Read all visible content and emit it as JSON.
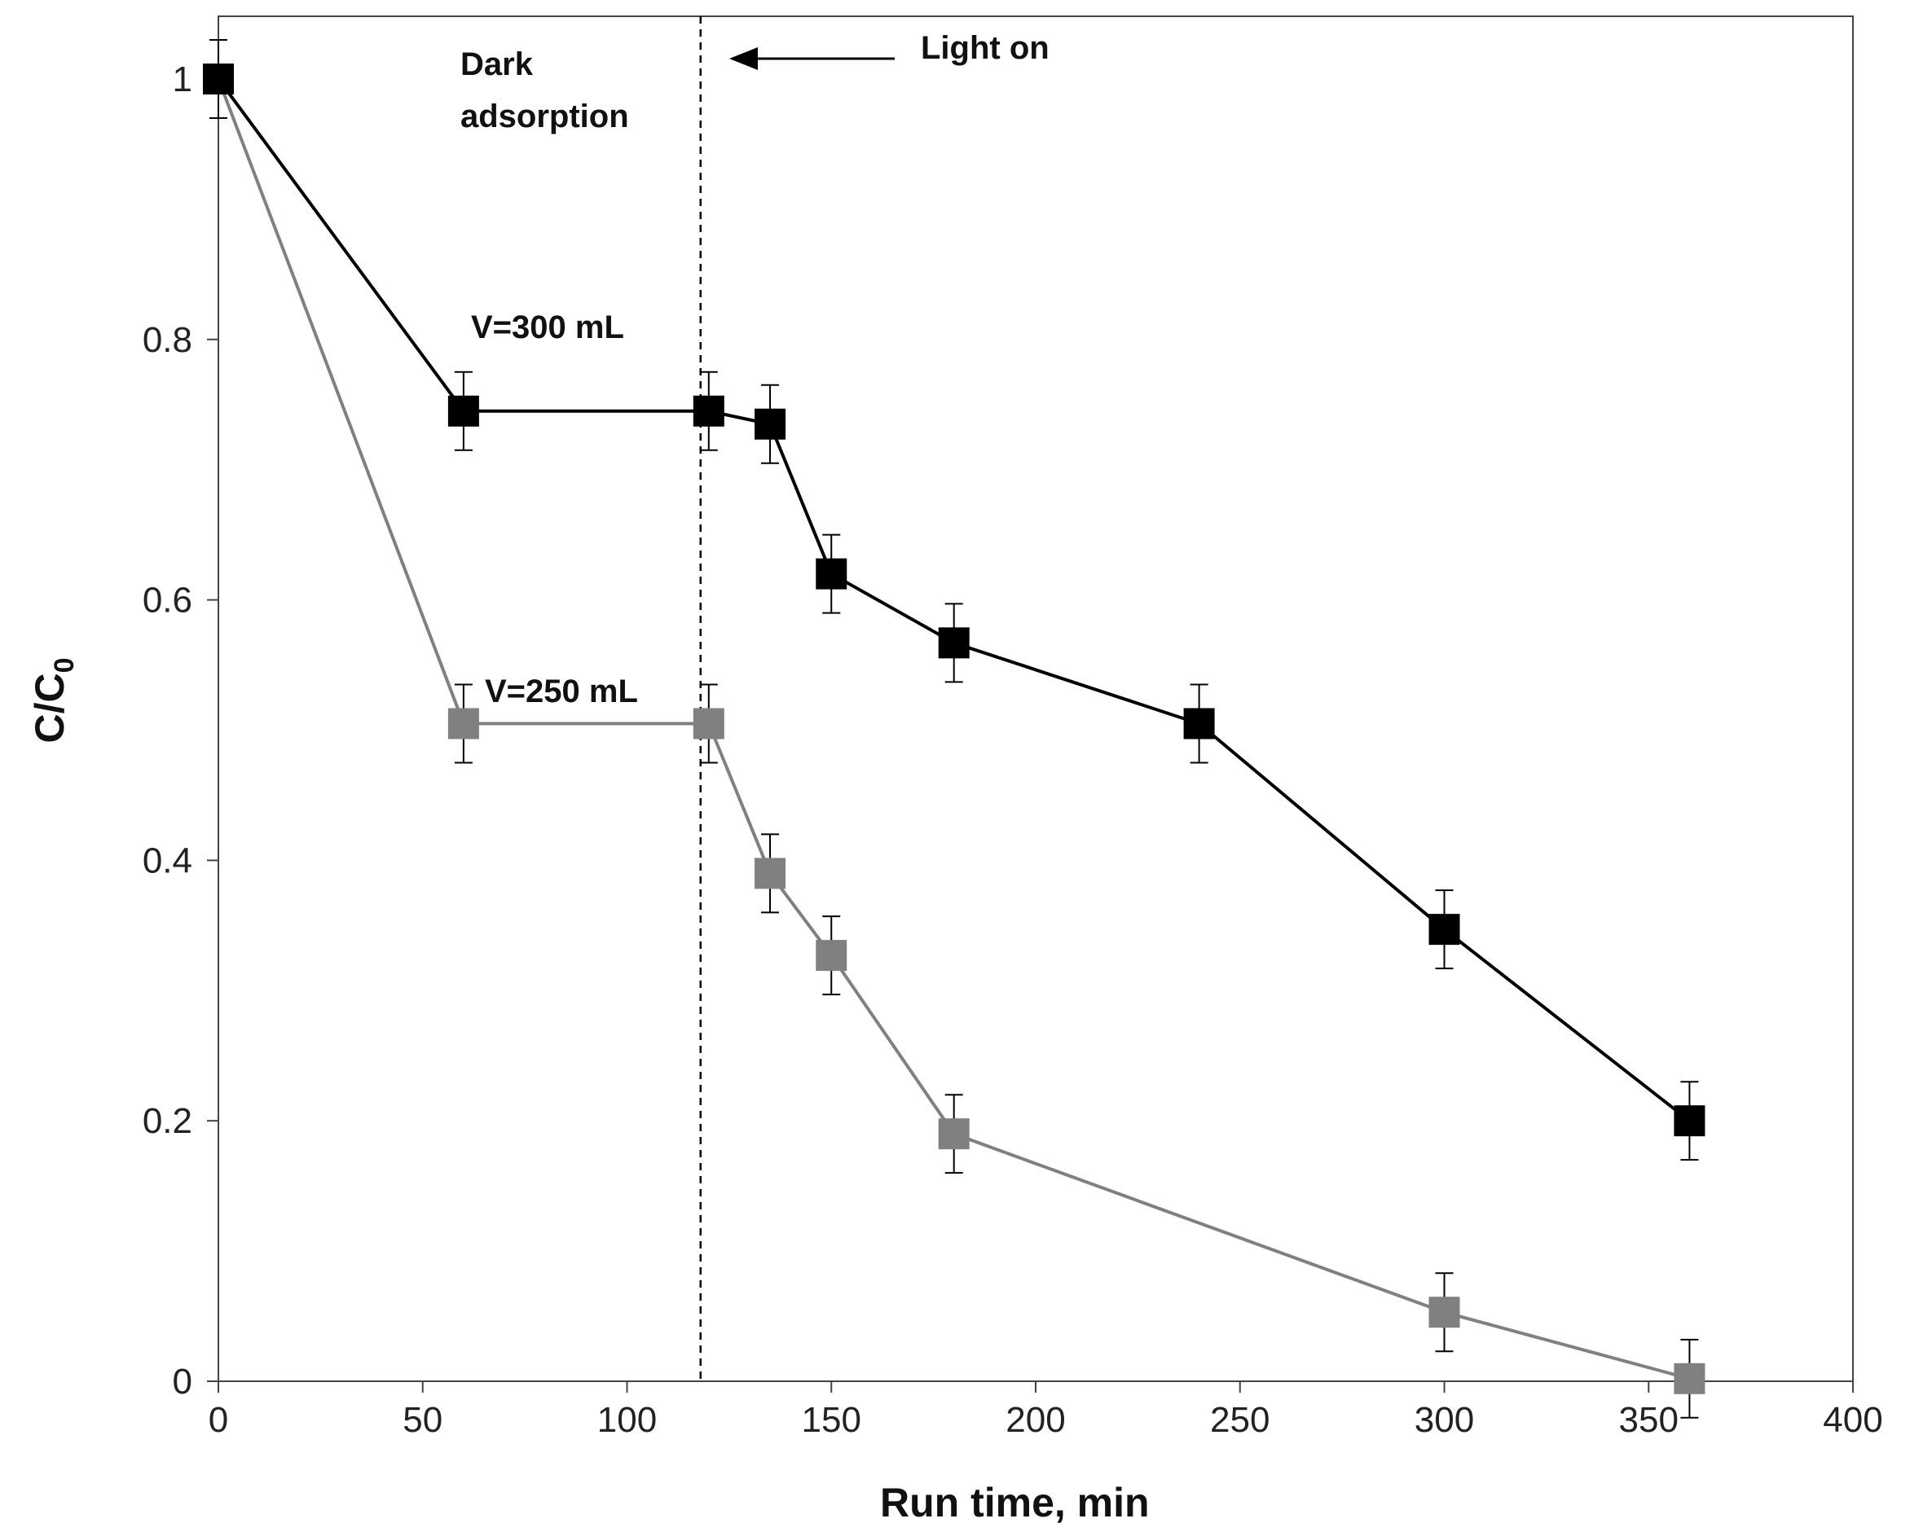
{
  "chart_data": {
    "type": "line",
    "title": "",
    "xlabel": "Run time, min",
    "ylabel_main": "C/C",
    "ylabel_sub": "0",
    "xlim": [
      0,
      400
    ],
    "ylim": [
      0,
      1
    ],
    "xticks": [
      0,
      50,
      100,
      150,
      200,
      250,
      300,
      350,
      400
    ],
    "yticks": [
      0,
      0.2,
      0.4,
      0.6,
      0.8,
      1
    ],
    "ytick_labels": [
      "0",
      "0.2",
      "0.4",
      "0.6",
      "0.8",
      "1"
    ],
    "grid": false,
    "light_on_time": 118,
    "series": [
      {
        "name": "V=300 mL",
        "color": "#000000",
        "x": [
          0,
          60,
          120,
          135,
          150,
          180,
          240,
          300,
          360
        ],
        "values": [
          1.0,
          0.745,
          0.745,
          0.735,
          0.62,
          0.567,
          0.505,
          0.347,
          0.2
        ],
        "errors": [
          0.03,
          0.03,
          0.03,
          0.03,
          0.03,
          0.03,
          0.03,
          0.03,
          0.03
        ]
      },
      {
        "name": "V=250 mL",
        "color": "#808080",
        "x": [
          0,
          60,
          120,
          135,
          150,
          180,
          300,
          360
        ],
        "values": [
          1.0,
          0.505,
          0.505,
          0.39,
          0.327,
          0.19,
          0.053,
          0.002
        ],
        "errors": [
          0.03,
          0.03,
          0.03,
          0.03,
          0.03,
          0.03,
          0.03,
          0.03
        ]
      }
    ],
    "annotations": {
      "dark_line1": "Dark",
      "dark_line2": "adsorption",
      "light_on": "Light on",
      "label_300": "V=300 mL",
      "label_250": "V=250 mL"
    }
  }
}
